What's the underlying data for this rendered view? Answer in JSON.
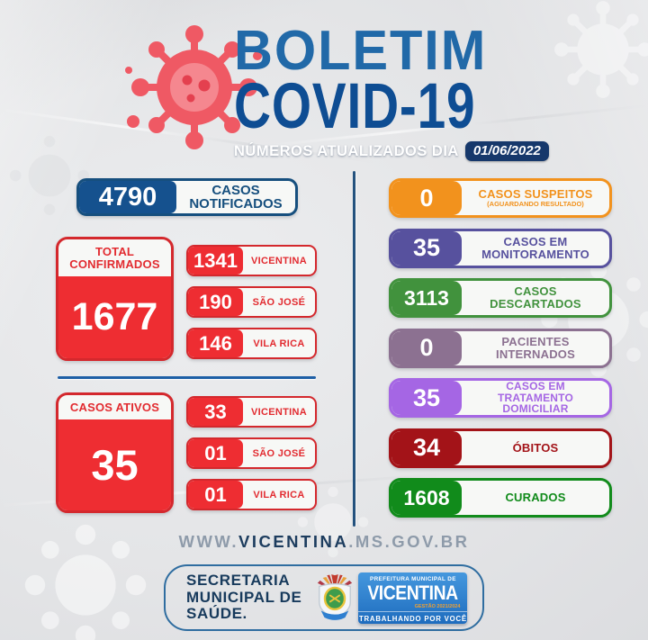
{
  "header": {
    "title_line1": "BOLETIM",
    "title_line2": "COVID-19",
    "subtitle": "NÚMEROS ATUALIZADOS DIA",
    "date": "01/06/2022"
  },
  "left": {
    "notified": {
      "value": "4790",
      "label": "CASOS NOTIFICADOS"
    },
    "confirmed": {
      "title": "TOTAL CONFIRMADOS",
      "value": "1677",
      "rows": [
        {
          "value": "1341",
          "label": "VICENTINA"
        },
        {
          "value": "190",
          "label": "SÃO JOSÉ"
        },
        {
          "value": "146",
          "label": "VILA RICA"
        }
      ]
    },
    "active": {
      "title": "CASOS ATIVOS",
      "value": "35",
      "rows": [
        {
          "value": "33",
          "label": "VICENTINA"
        },
        {
          "value": "01",
          "label": "SÃO JOSÉ"
        },
        {
          "value": "01",
          "label": "VILA RICA"
        }
      ]
    }
  },
  "right": {
    "rows": [
      {
        "value": "0",
        "label": "CASOS SUSPEITOS",
        "sublabel": "(AGUARDANDO RESULTADO)",
        "color": "#F2921D",
        "name": "casos-suspeitos"
      },
      {
        "value": "35",
        "label": "CASOS EM MONITORAMENTO",
        "color": "#57519E",
        "name": "casos-em-monitoramento"
      },
      {
        "value": "3113",
        "label": "CASOS DESCARTADOS",
        "color": "#41923D",
        "name": "casos-descartados"
      },
      {
        "value": "0",
        "label": "PACIENTES INTERNADOS",
        "color": "#8C7191",
        "name": "pacientes-internados"
      },
      {
        "value": "35",
        "label": "CASOS EM TRATAMENTO DOMICILIAR",
        "color": "#A566E4",
        "small": true,
        "name": "casos-tratamento-domiciliar"
      },
      {
        "value": "34",
        "label": "ÓBITOS",
        "color": "#A31318",
        "name": "obitos"
      },
      {
        "value": "1608",
        "label": "CURADOS",
        "color": "#118B1B",
        "name": "curados"
      }
    ]
  },
  "website": {
    "prefix": "WWW.",
    "main": "VICENTINA",
    "suffix": ".MS.GOV.BR"
  },
  "footer": {
    "secretaria_lines": [
      "SECRETARIA",
      "MUNICIPAL DE",
      "SAÚDE."
    ],
    "badge_top": "PREFEITURA MUNICIPAL DE",
    "badge_name": "VICENTINA",
    "badge_gestao": "GESTÃO 2021/2024",
    "badge_bottom": "TRABALHANDO POR VOCÊ"
  },
  "colors": {
    "title_light_blue": "#2169A8",
    "title_dark_blue": "#0E4D93",
    "navy": "#164F7E",
    "notified_fill": "#15518E",
    "red_fill": "#EE2D32",
    "red_border": "#D4282D",
    "divider_blue": "#1E5FA6",
    "badge_blue": "#2E80CC",
    "virus_pink": "#EF5964"
  }
}
